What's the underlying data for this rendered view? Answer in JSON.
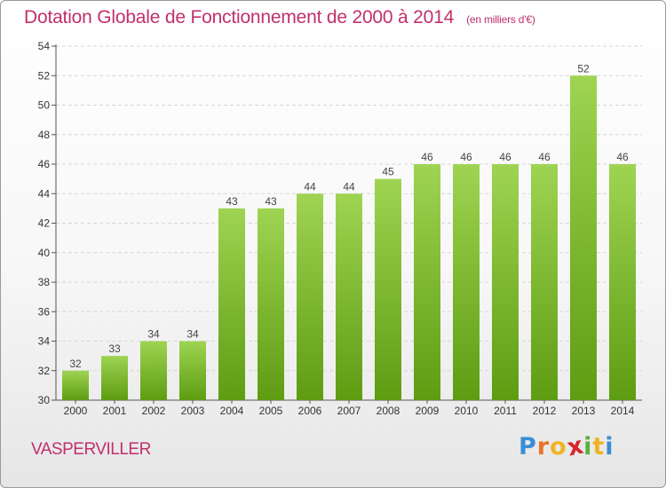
{
  "title": "Dotation Globale de Fonctionnement de 2000 à 2014",
  "subtitle": "(en milliers d'€)",
  "commune": "VASPERVILLER",
  "logo": {
    "letters": [
      "P",
      "r",
      "o",
      "x",
      "i",
      "t",
      "i"
    ],
    "colors": [
      "#3a8fd6",
      "#e8732a",
      "#f0b323",
      "#d8262e",
      "#5ab03c",
      "#f0b323",
      "#3a8fd6"
    ]
  },
  "colors": {
    "bar_top": "#9ed452",
    "bar_bottom": "#5e9c12",
    "title": "#c0316b"
  },
  "chart_data": {
    "type": "bar",
    "title": "Dotation Globale de Fonctionnement de 2000 à 2014",
    "subtitle": "(en milliers d'€)",
    "categories": [
      "2000",
      "2001",
      "2002",
      "2003",
      "2004",
      "2005",
      "2006",
      "2007",
      "2008",
      "2009",
      "2010",
      "2011",
      "2012",
      "2013",
      "2014"
    ],
    "values": [
      32,
      33,
      34,
      34,
      43,
      43,
      44,
      44,
      45,
      46,
      46,
      46,
      46,
      52,
      46
    ],
    "ylim": [
      30,
      54
    ],
    "yticks": [
      30,
      32,
      34,
      36,
      38,
      40,
      42,
      44,
      46,
      48,
      50,
      52,
      54
    ],
    "grid": true,
    "xlabel": "",
    "ylabel": ""
  }
}
